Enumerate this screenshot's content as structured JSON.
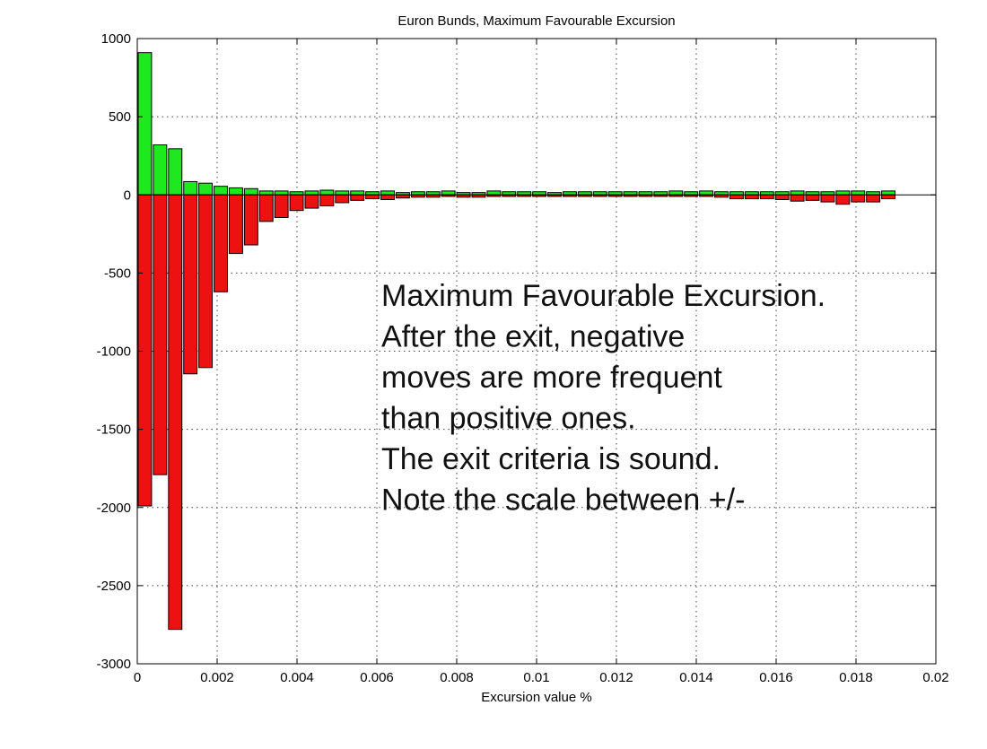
{
  "chart_data": {
    "type": "bar",
    "title": "Euron Bunds, Maximum Favourable Excursion",
    "xlabel": "Excursion value %",
    "ylabel": "",
    "xlim": [
      0,
      0.02
    ],
    "ylim": [
      -3000,
      1000
    ],
    "grid": true,
    "x_ticks": [
      "0",
      "0.002",
      "0.004",
      "0.006",
      "0.008",
      "0.01",
      "0.012",
      "0.014",
      "0.016",
      "0.018",
      "0.02"
    ],
    "x_tick_values": [
      0,
      0.002,
      0.004,
      0.006,
      0.008,
      0.01,
      0.012,
      0.014,
      0.016,
      0.018,
      0.02
    ],
    "y_ticks": [
      "1000",
      "500",
      "0",
      "-500",
      "-1000",
      "-1500",
      "-2000",
      "-2500",
      "-3000"
    ],
    "y_tick_values": [
      1000,
      500,
      0,
      -500,
      -1000,
      -1500,
      -2000,
      -2500,
      -3000
    ],
    "bin_width": 0.00038,
    "x": [
      0.00019,
      0.00057,
      0.00095,
      0.00133,
      0.00171,
      0.00209,
      0.00247,
      0.00285,
      0.00323,
      0.00361,
      0.00399,
      0.00437,
      0.00475,
      0.00513,
      0.00551,
      0.00589,
      0.00627,
      0.00665,
      0.00703,
      0.00741,
      0.00779,
      0.00817,
      0.00855,
      0.00893,
      0.00931,
      0.00969,
      0.01007,
      0.01045,
      0.01083,
      0.01121,
      0.01159,
      0.01197,
      0.01235,
      0.01273,
      0.01311,
      0.01349,
      0.01387,
      0.01425,
      0.01463,
      0.01501,
      0.01539,
      0.01577,
      0.01615,
      0.01653,
      0.01691,
      0.01729,
      0.01767,
      0.01805,
      0.01843,
      0.01881
    ],
    "series": [
      {
        "color": "#1ee81e",
        "values": [
          910,
          320,
          295,
          85,
          75,
          55,
          45,
          40,
          25,
          25,
          20,
          25,
          30,
          25,
          25,
          20,
          25,
          15,
          20,
          20,
          25,
          15,
          15,
          25,
          20,
          20,
          20,
          15,
          20,
          20,
          20,
          20,
          20,
          20,
          20,
          25,
          20,
          25,
          20,
          20,
          20,
          20,
          20,
          25,
          20,
          20,
          25,
          25,
          20,
          25
        ]
      },
      {
        "color": "#ee1111",
        "values": [
          -1990,
          -1790,
          -2780,
          -1145,
          -1105,
          -620,
          -375,
          -320,
          -170,
          -145,
          -100,
          -85,
          -70,
          -50,
          -35,
          -25,
          -30,
          -20,
          -15,
          -15,
          -10,
          -15,
          -15,
          -10,
          -10,
          -10,
          -10,
          -10,
          -10,
          -10,
          -10,
          -10,
          -10,
          -10,
          -10,
          -10,
          -10,
          -10,
          -15,
          -25,
          -25,
          -25,
          -30,
          -40,
          -35,
          -45,
          -60,
          -45,
          -45,
          -25
        ]
      }
    ],
    "annotation": [
      "Maximum Favourable Excursion.",
      "After the exit, negative",
      "moves are more frequent",
      "than positive ones.",
      "The exit criteria is sound.",
      "Note the scale between +/-"
    ]
  }
}
